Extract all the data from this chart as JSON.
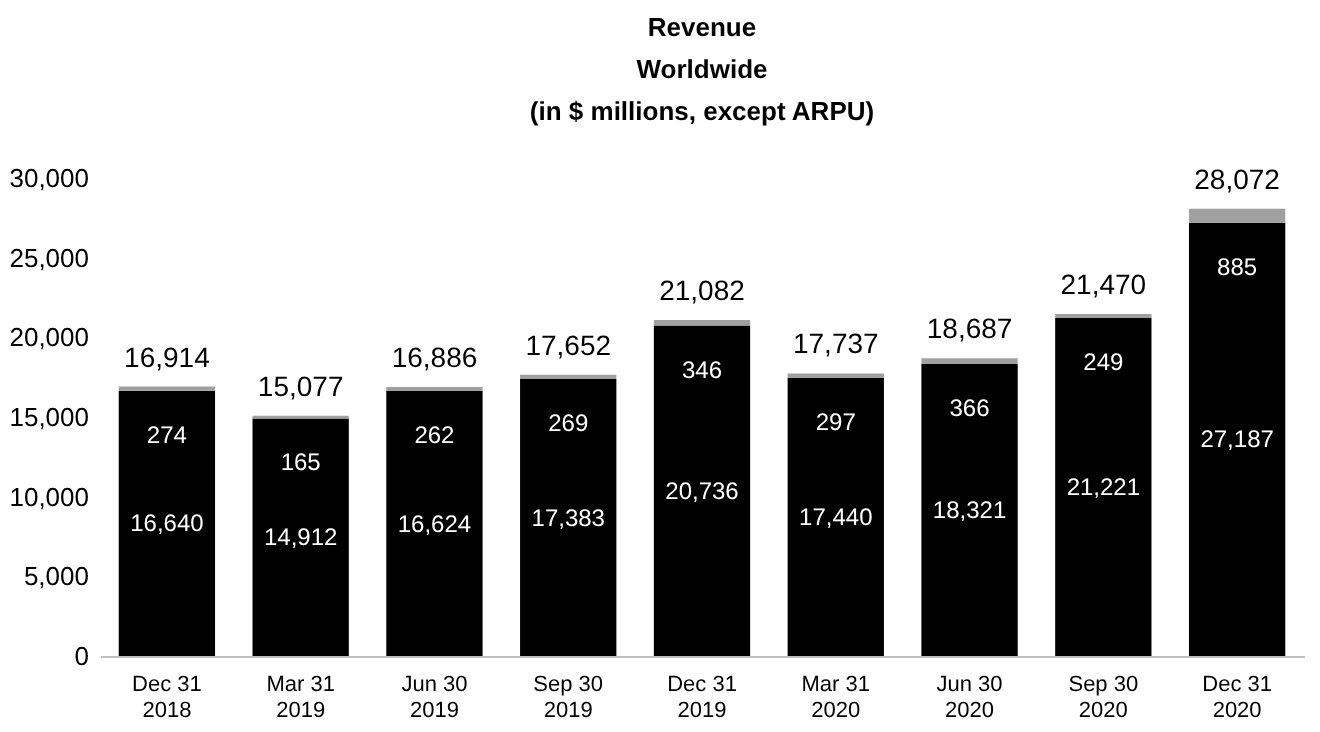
{
  "chart_data": {
    "type": "bar",
    "title": [
      "Revenue",
      "Worldwide",
      "(in $ millions, except ARPU)"
    ],
    "categories": [
      "Dec 31\n2018",
      "Mar 31\n2019",
      "Jun 30\n2019",
      "Sep 30\n2019",
      "Dec 31\n2019",
      "Mar 31\n2020",
      "Jun 30\n2020",
      "Sep 30\n2020",
      "Dec 31\n2020"
    ],
    "stacked": true,
    "series": [
      {
        "color": "#000000",
        "values": [
          16640,
          14912,
          16624,
          17383,
          20736,
          17440,
          18321,
          21221,
          27187
        ],
        "value_labels": [
          "16,640",
          "14,912",
          "16,624",
          "17,383",
          "20,736",
          "17,440",
          "18,321",
          "21,221",
          "27,187"
        ]
      },
      {
        "color": "#a0a0a0",
        "values": [
          274,
          165,
          262,
          269,
          346,
          297,
          366,
          249,
          885
        ],
        "value_labels": [
          "274",
          "165",
          "262",
          "269",
          "346",
          "297",
          "366",
          "249",
          "885"
        ]
      }
    ],
    "totals": [
      "16,914",
      "15,077",
      "16,886",
      "17,652",
      "21,082",
      "17,737",
      "18,687",
      "21,470",
      "28,072"
    ],
    "ylim": [
      0,
      30000
    ],
    "yticks": [
      {
        "value": 0,
        "label": "0"
      },
      {
        "value": 5000,
        "label": "5,000"
      },
      {
        "value": 10000,
        "label": "10,000"
      },
      {
        "value": 15000,
        "label": "15,000"
      },
      {
        "value": 20000,
        "label": "20,000"
      },
      {
        "value": 25000,
        "label": "25,000"
      },
      {
        "value": 30000,
        "label": "30,000"
      }
    ],
    "grid": false,
    "legend": false
  }
}
